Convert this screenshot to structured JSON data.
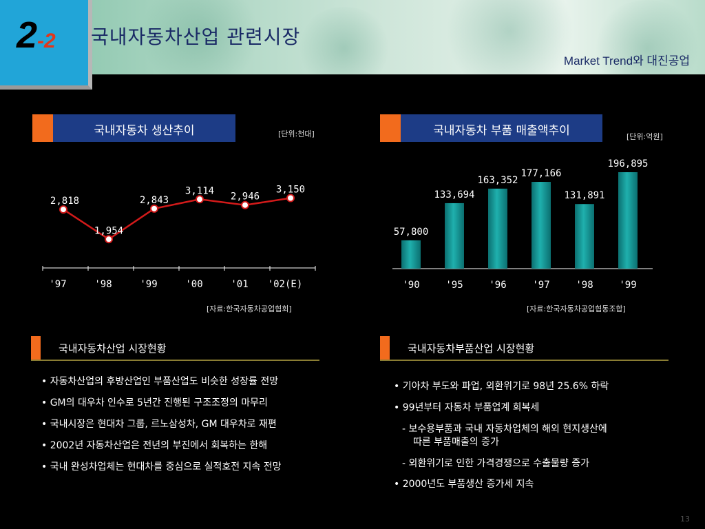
{
  "header": {
    "section_major": "2",
    "section_minor": "-2",
    "title": "국내자동차산업 관련시장",
    "subtitle": "Market Trend와 대진공업"
  },
  "left_chart": {
    "heading": "국내자동차 생산추이",
    "unit": "[단위:천대]",
    "source": "[자료:한국자동차공업협회]"
  },
  "right_chart": {
    "heading": "국내자동차 부품 매출액추이",
    "unit": "[단위:억원]",
    "source": "[자료:한국자동차공업협동조합]"
  },
  "colors": {
    "line": "#d21a1a",
    "marker_fill": "#ffffff",
    "bar": "#1fb0ad",
    "section_blue": "#1d3c86",
    "accent_orange": "#f26b1d"
  },
  "chart_data": [
    {
      "type": "line",
      "categories": [
        "'97",
        "'98",
        "'99",
        "'00",
        "'01",
        "'02(E)"
      ],
      "values": [
        2818,
        1954,
        2843,
        3114,
        2946,
        3150
      ],
      "data_labels": [
        "2,818",
        "1,954",
        "2,843",
        "3,114",
        "2,946",
        "3,150"
      ],
      "title": "국내자동차 생산추이",
      "grid": false
    },
    {
      "type": "bar",
      "categories": [
        "'90",
        "'95",
        "'96",
        "'97",
        "'98",
        "'99"
      ],
      "values": [
        57800,
        133694,
        163352,
        177166,
        131891,
        196895
      ],
      "data_labels": [
        "57,800",
        "133,694",
        "163,352",
        "177,166",
        "131,891",
        "196,895"
      ],
      "title": "국내자동차 부품 매출액추이",
      "grid": false
    }
  ],
  "left_section": {
    "heading": "국내자동차산업 시장현황",
    "bullets": [
      "• 자동차산업의 후방산업인 부품산업도 비슷한 성장률 전망",
      "• GM의 대우차 인수로 5년간 진행된 구조조정의 마무리",
      "• 국내시장은 현대차 그룹, 르노삼성차, GM 대우차로 재편",
      "• 2002년 자동차산업은 전년의 부진에서 회복하는 한해",
      "• 국내 완성차업체는 현대차를 중심으로 실적호전 지속 전망"
    ]
  },
  "right_section": {
    "heading": "국내자동차부품산업 시장현황",
    "bullets": [
      "• 기아차 부도와 파업, 외환위기로 98년 25.6% 하락",
      "• 99년부터 자동차 부품업계 회복세",
      "- 보수용부품과 국내 자동차업체의 해외 현지생산에",
      "따른 부품매출의 증가",
      "- 외환위기로 인한 가격경쟁으로 수출물량 증가",
      "• 2000년도 부품생산 증가세 지속"
    ]
  },
  "footer": {
    "page_number": "13"
  }
}
